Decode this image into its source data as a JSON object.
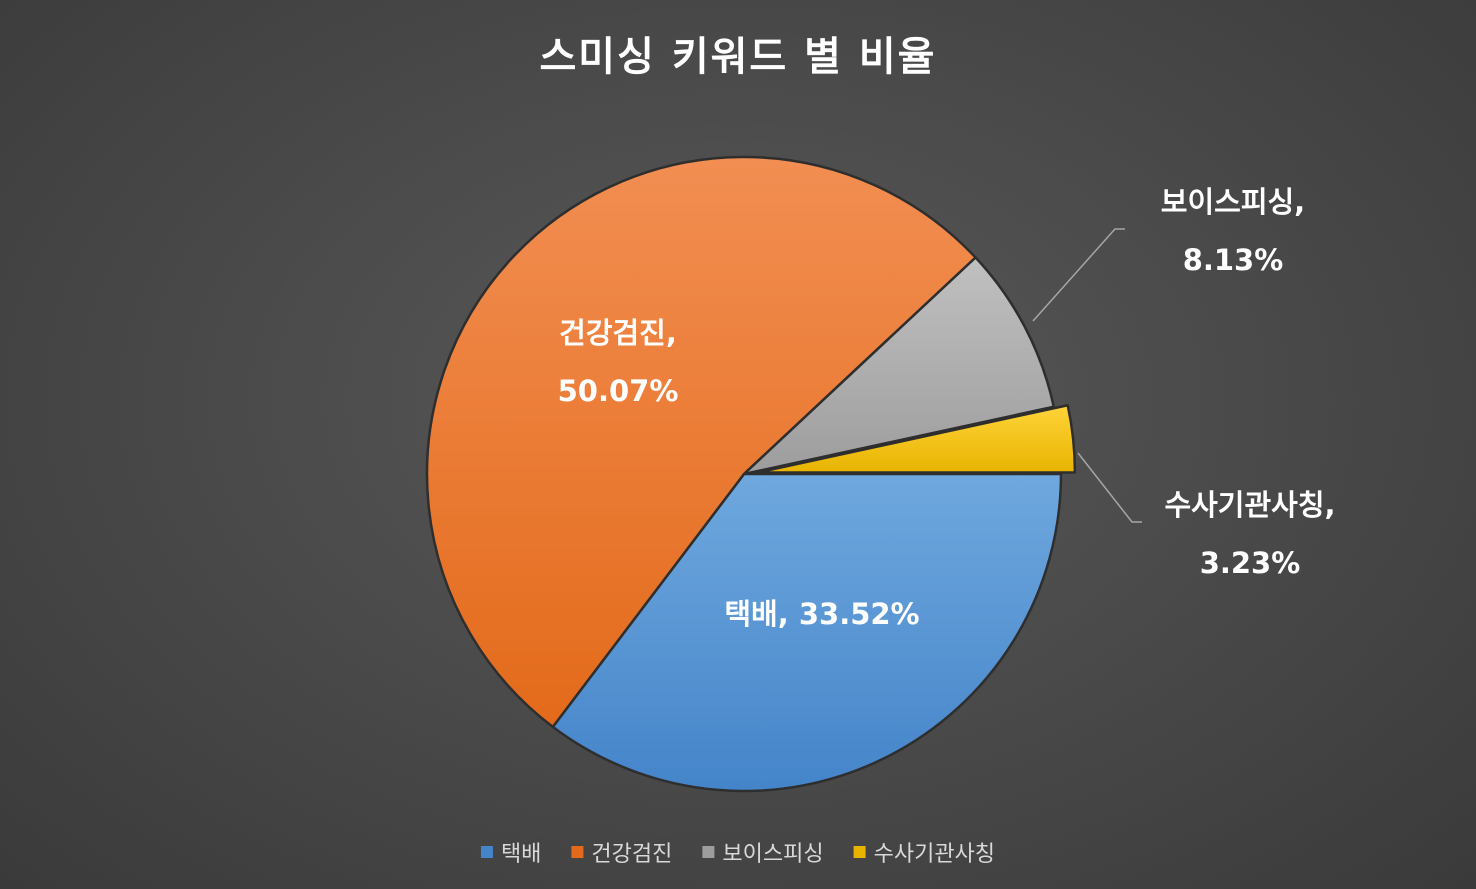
{
  "chart_data": {
    "type": "pie",
    "title": "스미싱 키워드 별 비율",
    "categories": [
      "택배",
      "건강검진",
      "보이스피싱",
      "수사기관사칭"
    ],
    "values": [
      33.52,
      50.07,
      8.13,
      3.23
    ],
    "data_labels": [
      [
        "택배, 33.52%"
      ],
      [
        "건강검진,",
        "50.07%"
      ],
      [
        "보이스피싱,",
        "8.13%"
      ],
      [
        "수사기관사칭,",
        "3.23%"
      ]
    ],
    "legend": {
      "position": "bottom",
      "entries": [
        "택배",
        "건강검진",
        "보이스피싱",
        "수사기관사칭"
      ]
    },
    "colors": {
      "택배": [
        "#6fa8de",
        "#4484c9"
      ],
      "건강검진": [
        "#f28e52",
        "#e36a1a"
      ],
      "보이스피싱": [
        "#c0c0c0",
        "#9d9d9d"
      ],
      "수사기관사칭": [
        "#ffd43a",
        "#e8b400"
      ]
    },
    "exploded": [
      "수사기관사칭"
    ]
  }
}
